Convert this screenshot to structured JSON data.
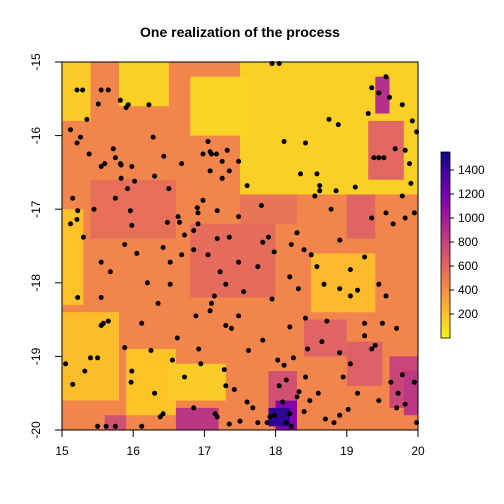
{
  "chart_data": {
    "type": "heatmap",
    "title": "One realization of the process",
    "xlabel": "",
    "ylabel": "",
    "xlim": [
      15,
      20
    ],
    "ylim": [
      -20,
      -15
    ],
    "x_ticks": [
      15,
      16,
      17,
      18,
      19,
      20
    ],
    "y_ticks": [
      -15,
      -16,
      -17,
      -18,
      -19,
      -20
    ],
    "x_tick_labels": [
      "15",
      "16",
      "17",
      "18",
      "19",
      "20"
    ],
    "y_tick_labels": [
      "-15",
      "-16",
      "-17",
      "-18",
      "-19",
      "-20"
    ],
    "grid": false,
    "colorbar": {
      "range": [
        0,
        1550
      ],
      "ticks": [
        200,
        400,
        600,
        800,
        1000,
        1200,
        1400
      ],
      "tick_labels": [
        "200",
        "400",
        "600",
        "800",
        "1000",
        "1200",
        "1400"
      ],
      "palette": [
        "#F0F921",
        "#FDC328",
        "#F89441",
        "#E56B5D",
        "#CB4679",
        "#A82296",
        "#7E03A8",
        "#4C02A1",
        "#0D0887"
      ],
      "position": "right"
    },
    "field_regions": [
      {
        "x": [
          15.0,
          20.0
        ],
        "y": [
          -20.0,
          -15.0
        ],
        "value": 460
      },
      {
        "x": [
          17.5,
          20.0
        ],
        "y": [
          -16.8,
          -15.0
        ],
        "value": 150
      },
      {
        "x": [
          16.8,
          17.6
        ],
        "y": [
          -16.0,
          -15.2
        ],
        "value": 130
      },
      {
        "x": [
          15.0,
          15.4
        ],
        "y": [
          -15.8,
          -15.0
        ],
        "value": 160
      },
      {
        "x": [
          15.8,
          16.5
        ],
        "y": [
          -15.6,
          -15.0
        ],
        "value": 150
      },
      {
        "x": [
          15.0,
          15.8
        ],
        "y": [
          -19.6,
          -18.4
        ],
        "value": 220
      },
      {
        "x": [
          15.0,
          15.3
        ],
        "y": [
          -18.3,
          -17.0
        ],
        "value": 200
      },
      {
        "x": [
          15.9,
          16.6
        ],
        "y": [
          -19.8,
          -18.9
        ],
        "value": 190
      },
      {
        "x": [
          16.5,
          17.3
        ],
        "y": [
          -19.6,
          -19.1
        ],
        "value": 160
      },
      {
        "x": [
          18.5,
          19.4
        ],
        "y": [
          -18.4,
          -17.6
        ],
        "value": 230
      },
      {
        "x": [
          15.4,
          16.6
        ],
        "y": [
          -17.4,
          -16.6
        ],
        "value": 560
      },
      {
        "x": [
          16.8,
          18.0
        ],
        "y": [
          -18.2,
          -17.2
        ],
        "value": 580
      },
      {
        "x": [
          17.5,
          18.3
        ],
        "y": [
          -17.2,
          -16.8
        ],
        "value": 540
      },
      {
        "x": [
          18.4,
          19.0
        ],
        "y": [
          -19.0,
          -18.5
        ],
        "value": 620
      },
      {
        "x": [
          19.0,
          19.5
        ],
        "y": [
          -19.4,
          -18.8
        ],
        "value": 640
      },
      {
        "x": [
          19.6,
          20.0
        ],
        "y": [
          -19.7,
          -19.0
        ],
        "value": 780
      },
      {
        "x": [
          19.3,
          19.8
        ],
        "y": [
          -16.6,
          -15.8
        ],
        "value": 600
      },
      {
        "x": [
          19.0,
          19.4
        ],
        "y": [
          -17.4,
          -16.8
        ],
        "value": 620
      },
      {
        "x": [
          17.9,
          18.3
        ],
        "y": [
          -19.8,
          -19.2
        ],
        "value": 720
      },
      {
        "x": [
          16.6,
          17.2
        ],
        "y": [
          -20.0,
          -19.7
        ],
        "value": 860
      },
      {
        "x": [
          18.0,
          18.3
        ],
        "y": [
          -20.0,
          -19.6
        ],
        "value": 1150
      },
      {
        "x": [
          17.9,
          18.2
        ],
        "y": [
          -19.95,
          -19.7
        ],
        "value": 1450
      },
      {
        "x": [
          19.4,
          19.6
        ],
        "y": [
          -15.7,
          -15.2
        ],
        "value": 900
      },
      {
        "x": [
          15.6,
          15.9
        ],
        "y": [
          -20.0,
          -19.8
        ],
        "value": 720
      },
      {
        "x": [
          19.8,
          20.0
        ],
        "y": [
          -19.8,
          -19.2
        ],
        "value": 850
      }
    ],
    "points": [
      [
        15.29,
        -15.38
      ],
      [
        15.21,
        -15.38
      ],
      [
        15.35,
        -15.78
      ],
      [
        15.51,
        -15.57
      ],
      [
        15.55,
        -15.38
      ],
      [
        15.65,
        -15.38
      ],
      [
        15.82,
        -15.52
      ],
      [
        15.9,
        -15.62
      ],
      [
        15.93,
        -15.58
      ],
      [
        16.22,
        -15.58
      ],
      [
        15.12,
        -15.92
      ],
      [
        15.26,
        -16.02
      ],
      [
        15.21,
        -16.1
      ],
      [
        15.38,
        -16.25
      ],
      [
        15.55,
        -16.42
      ],
      [
        15.75,
        -16.3
      ],
      [
        15.82,
        -16.38
      ],
      [
        15.98,
        -16.42
      ],
      [
        15.6,
        -16.38
      ],
      [
        15.72,
        -16.18
      ],
      [
        15.83,
        -16.4
      ],
      [
        15.83,
        -16.58
      ],
      [
        15.92,
        -16.72
      ],
      [
        15.75,
        -16.85
      ],
      [
        15.15,
        -16.85
      ],
      [
        15.12,
        -17.2
      ],
      [
        15.22,
        -17.02
      ],
      [
        15.21,
        -17.14
      ],
      [
        15.45,
        -17.0
      ],
      [
        15.98,
        -17.22
      ],
      [
        15.96,
        -17.02
      ],
      [
        16.3,
        -16.55
      ],
      [
        16.43,
        -16.28
      ],
      [
        16.5,
        -16.72
      ],
      [
        16.68,
        -16.38
      ],
      [
        16.48,
        -17.18
      ],
      [
        16.63,
        -17.1
      ],
      [
        16.85,
        -17.55
      ],
      [
        16.68,
        -17.62
      ],
      [
        16.65,
        -17.18
      ],
      [
        16.9,
        -16.98
      ],
      [
        16.98,
        -16.88
      ],
      [
        16.91,
        -17.05
      ],
      [
        16.91,
        -17.2
      ],
      [
        16.85,
        -17.29
      ],
      [
        16.98,
        -16.25
      ],
      [
        17.08,
        -16.22
      ],
      [
        17.1,
        -16.25
      ],
      [
        17.17,
        -16.25
      ],
      [
        17.25,
        -16.35
      ],
      [
        17.25,
        -16.58
      ],
      [
        17.35,
        -16.48
      ],
      [
        17.32,
        -16.2
      ],
      [
        17.08,
        -16.48
      ],
      [
        17.48,
        -16.35
      ],
      [
        17.48,
        -17.1
      ],
      [
        17.18,
        -17.02
      ],
      [
        17.18,
        -17.4
      ],
      [
        17.35,
        -17.38
      ],
      [
        17.6,
        -16.68
      ],
      [
        17.8,
        -16.95
      ],
      [
        17.9,
        -17.38
      ],
      [
        17.75,
        -17.78
      ],
      [
        17.82,
        -17.45
      ],
      [
        17.48,
        -17.72
      ],
      [
        17.3,
        -18.02
      ],
      [
        17.1,
        -18.28
      ],
      [
        17.08,
        -18.38
      ],
      [
        17.14,
        -18.18
      ],
      [
        17.22,
        -17.85
      ],
      [
        16.88,
        -18.45
      ],
      [
        16.62,
        -18.75
      ],
      [
        17.3,
        -18.58
      ],
      [
        17.48,
        -18.45
      ],
      [
        17.62,
        -18.92
      ],
      [
        17.82,
        -18.78
      ],
      [
        17.55,
        -18.12
      ],
      [
        15.68,
        -17.85
      ],
      [
        15.55,
        -17.72
      ],
      [
        15.22,
        -18.2
      ],
      [
        15.55,
        -18.2
      ],
      [
        15.55,
        -18.58
      ],
      [
        15.65,
        -18.52
      ],
      [
        15.88,
        -18.88
      ],
      [
        15.5,
        -19.02
      ],
      [
        15.4,
        -19.02
      ],
      [
        15.32,
        -19.2
      ],
      [
        15.05,
        -19.1
      ],
      [
        15.15,
        -19.38
      ],
      [
        15.58,
        -18.55
      ],
      [
        15.98,
        -19.2
      ],
      [
        15.97,
        -19.35
      ],
      [
        16.3,
        -19.5
      ],
      [
        16.42,
        -19.78
      ],
      [
        16.38,
        -19.82
      ],
      [
        15.5,
        -19.95
      ],
      [
        15.62,
        -19.95
      ],
      [
        15.75,
        -19.95
      ],
      [
        16.12,
        -19.95
      ],
      [
        17.15,
        -19.78
      ],
      [
        17.3,
        -19.4
      ],
      [
        17.42,
        -19.45
      ],
      [
        17.5,
        -19.88
      ],
      [
        17.6,
        -19.62
      ],
      [
        17.35,
        -19.92
      ],
      [
        16.92,
        -18.9
      ],
      [
        16.95,
        -19.1
      ],
      [
        17.28,
        -19.18
      ],
      [
        16.85,
        -19.7
      ],
      [
        17.68,
        -19.7
      ],
      [
        17.75,
        -19.9
      ],
      [
        17.88,
        -19.9
      ],
      [
        17.92,
        -19.82
      ],
      [
        17.98,
        -19.8
      ],
      [
        18.03,
        -19.05
      ],
      [
        18.12,
        -19.12
      ],
      [
        18.15,
        -19.32
      ],
      [
        18.05,
        -19.4
      ],
      [
        18.1,
        -19.62
      ],
      [
        18.2,
        -19.78
      ],
      [
        18.22,
        -19.95
      ],
      [
        18.15,
        -19.9
      ],
      [
        18.3,
        -19.55
      ],
      [
        18.33,
        -19.48
      ],
      [
        18.4,
        -19.75
      ],
      [
        18.48,
        -19.6
      ],
      [
        18.6,
        -19.5
      ],
      [
        18.42,
        -19.28
      ],
      [
        18.25,
        -19.02
      ],
      [
        18.45,
        -18.9
      ],
      [
        18.65,
        -18.8
      ],
      [
        18.42,
        -18.48
      ],
      [
        18.2,
        -18.6
      ],
      [
        18.32,
        -18.08
      ],
      [
        18.68,
        -18.02
      ],
      [
        18.9,
        -18.08
      ],
      [
        19.05,
        -18.18
      ],
      [
        19.15,
        -18.1
      ],
      [
        19.25,
        -18.55
      ],
      [
        19.25,
        -18.72
      ],
      [
        19.4,
        -18.85
      ],
      [
        19.35,
        -18.9
      ],
      [
        19.05,
        -19.1
      ],
      [
        18.95,
        -19.28
      ],
      [
        19.15,
        -19.5
      ],
      [
        19.02,
        -19.72
      ],
      [
        18.9,
        -19.8
      ],
      [
        18.82,
        -19.9
      ],
      [
        18.7,
        -19.85
      ],
      [
        19.45,
        -19.6
      ],
      [
        19.7,
        -19.7
      ],
      [
        19.82,
        -19.65
      ],
      [
        19.72,
        -19.5
      ],
      [
        19.62,
        -19.35
      ],
      [
        19.78,
        -19.25
      ],
      [
        19.95,
        -19.35
      ],
      [
        19.98,
        -19.9
      ],
      [
        19.5,
        -18.55
      ],
      [
        19.55,
        -18.18
      ],
      [
        19.25,
        -17.65
      ],
      [
        18.9,
        -17.42
      ],
      [
        19.35,
        -17.12
      ],
      [
        19.55,
        -17.05
      ],
      [
        19.65,
        -17.2
      ],
      [
        19.82,
        -17.12
      ],
      [
        19.95,
        -17.05
      ],
      [
        19.78,
        -16.82
      ],
      [
        19.9,
        -16.65
      ],
      [
        19.45,
        -16.3
      ],
      [
        19.38,
        -16.3
      ],
      [
        19.52,
        -16.3
      ],
      [
        19.68,
        -16.18
      ],
      [
        19.82,
        -16.2
      ],
      [
        19.88,
        -16.38
      ],
      [
        19.98,
        -15.95
      ],
      [
        19.92,
        -15.8
      ],
      [
        19.6,
        -15.48
      ],
      [
        19.78,
        -15.58
      ],
      [
        19.45,
        -15.42
      ],
      [
        19.35,
        -15.35
      ],
      [
        19.3,
        -15.7
      ],
      [
        19.55,
        -15.2
      ],
      [
        18.85,
        -16.75
      ],
      [
        18.62,
        -16.75
      ],
      [
        18.55,
        -16.82
      ],
      [
        18.78,
        -17.0
      ],
      [
        18.3,
        -17.32
      ],
      [
        18.4,
        -17.55
      ],
      [
        18.5,
        -17.62
      ],
      [
        18.58,
        -17.78
      ],
      [
        18.2,
        -17.92
      ],
      [
        17.98,
        -17.58
      ],
      [
        18.62,
        -16.68
      ],
      [
        18.35,
        -16.52
      ],
      [
        18.42,
        -16.1
      ],
      [
        18.58,
        -16.52
      ],
      [
        18.88,
        -15.85
      ],
      [
        18.75,
        -15.78
      ],
      [
        17.95,
        -15.02
      ],
      [
        18.05,
        -15.02
      ],
      [
        16.52,
        -17.72
      ],
      [
        16.42,
        -17.52
      ],
      [
        16.05,
        -17.6
      ],
      [
        16.52,
        -18.02
      ],
      [
        16.35,
        -18.28
      ],
      [
        16.12,
        -18.55
      ],
      [
        16.25,
        -18.92
      ],
      [
        16.55,
        -19.05
      ],
      [
        16.72,
        -19.28
      ],
      [
        17.18,
        -19.82
      ],
      [
        15.3,
        -17.38
      ],
      [
        16.2,
        -18.0
      ],
      [
        17.95,
        -18.22
      ],
      [
        17.05,
        -17.62
      ],
      [
        17.38,
        -18.62
      ],
      [
        18.12,
        -16.08
      ],
      [
        16.28,
        -16.02
      ],
      [
        19.12,
        -16.7
      ],
      [
        17.05,
        -16.08
      ],
      [
        16.72,
        -17.35
      ],
      [
        19.45,
        -18.02
      ],
      [
        18.72,
        -18.52
      ],
      [
        18.22,
        -17.48
      ],
      [
        19.05,
        -17.82
      ],
      [
        18.9,
        -18.95
      ],
      [
        19.7,
        -18.62
      ],
      [
        16.02,
        -16.62
      ],
      [
        15.88,
        -17.48
      ]
    ]
  }
}
